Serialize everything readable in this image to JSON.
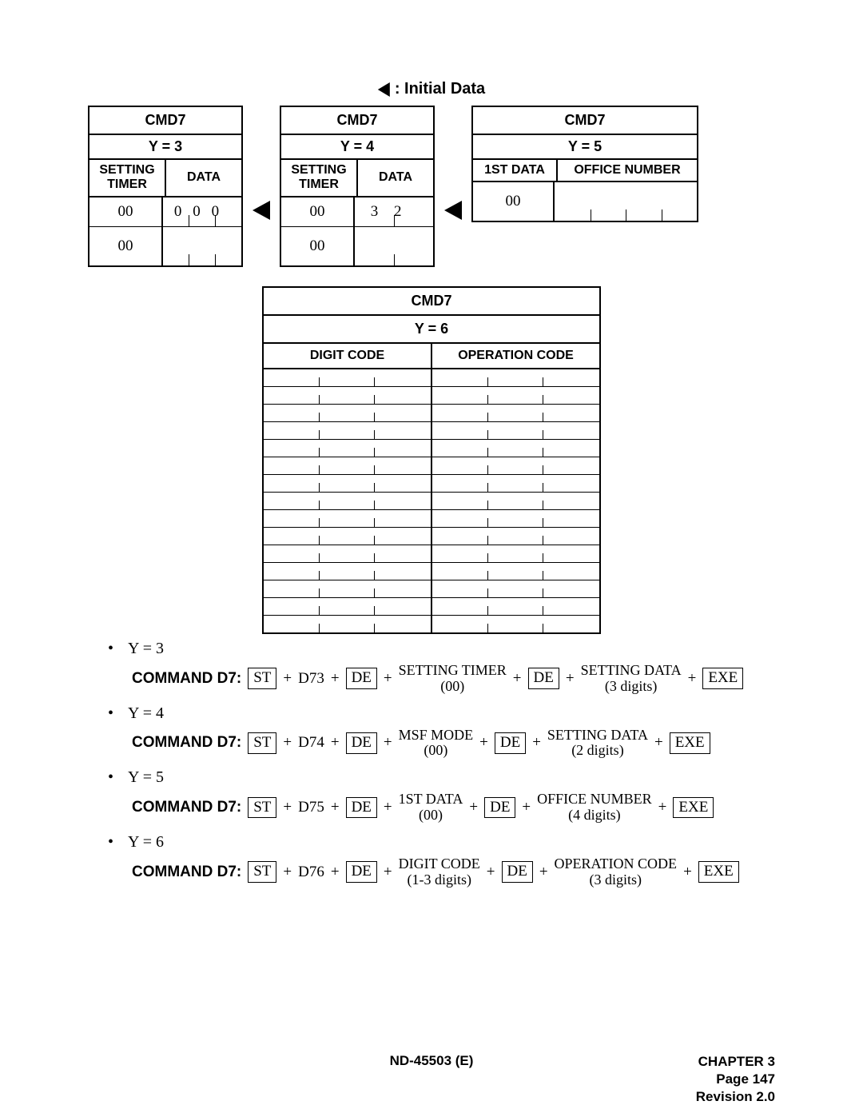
{
  "legend": {
    "label": ": Initial Data"
  },
  "tables": {
    "y3": {
      "title": "CMD7",
      "sub": "Y = 3",
      "col1": "SETTING TIMER",
      "col2": "DATA",
      "r1c1": "00",
      "r1c2a": "0",
      "r1c2b": "0",
      "r1c2c": "0",
      "r2c1": "00"
    },
    "y4": {
      "title": "CMD7",
      "sub": "Y = 4",
      "col1": "SETTING TIMER",
      "col2": "DATA",
      "r1c1": "00",
      "r1c2a": "3",
      "r1c2b": "2",
      "r2c1": "00"
    },
    "y5": {
      "title": "CMD7",
      "sub": "Y = 5",
      "col1": "1ST DATA",
      "col2": "OFFICE NUMBER",
      "r1c1": "00"
    },
    "y6": {
      "title": "CMD7",
      "sub": "Y = 6",
      "col1": "DIGIT CODE",
      "col2": "OPERATION CODE",
      "rows": 15
    }
  },
  "cmd": {
    "y3": {
      "bullet": "Y = 3",
      "label": "COMMAND D7:",
      "st": "ST",
      "d": "D73",
      "de": "DE",
      "p1t": "SETTING TIMER",
      "p1b": "(00)",
      "p2t": "SETTING DATA",
      "p2b": "(3 digits)",
      "exe": "EXE"
    },
    "y4": {
      "bullet": "Y = 4",
      "label": "COMMAND D7:",
      "st": "ST",
      "d": "D74",
      "de": "DE",
      "p1t": "MSF MODE",
      "p1b": "(00)",
      "p2t": "SETTING DATA",
      "p2b": "(2 digits)",
      "exe": "EXE"
    },
    "y5": {
      "bullet": "Y = 5",
      "label": "COMMAND D7:",
      "st": "ST",
      "d": "D75",
      "de": "DE",
      "p1t": "1ST DATA",
      "p1b": "(00)",
      "p2t": "OFFICE NUMBER",
      "p2b": "(4 digits)",
      "exe": "EXE"
    },
    "y6": {
      "bullet": "Y = 6",
      "label": "COMMAND D7:",
      "st": "ST",
      "d": "D76",
      "de": "DE",
      "p1t": "DIGIT CODE",
      "p1b": "(1-3 digits)",
      "p2t": "OPERATION CODE",
      "p2b": "(3 digits)",
      "exe": "EXE"
    }
  },
  "footer": {
    "doc": "ND-45503 (E)",
    "chapter": "CHAPTER 3",
    "page": "Page 147",
    "rev": "Revision 2.0"
  },
  "style": {
    "text_color": "#000000",
    "bg_color": "#ffffff",
    "border_color": "#000000"
  }
}
